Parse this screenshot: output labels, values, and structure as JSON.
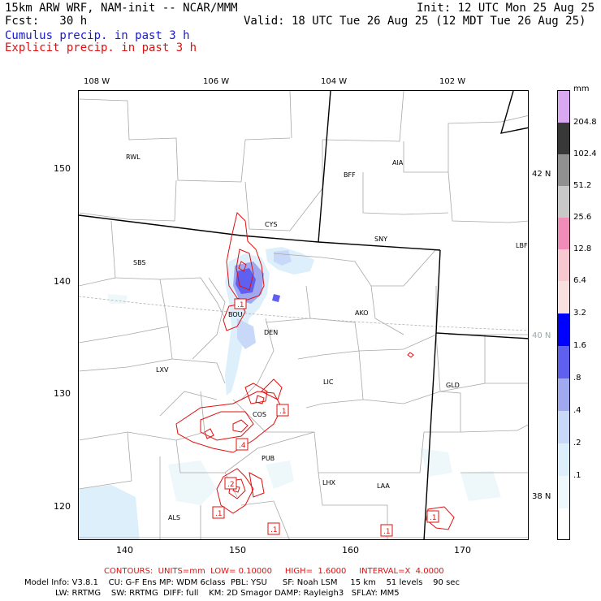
{
  "header": {
    "model_line": "15km ARW WRF, NAM-init -- NCAR/MMM",
    "fcst_line": "Fcst:   30 h",
    "init_line": "Init: 12 UTC Mon 25 Aug 25",
    "valid_line": "Valid: 18 UTC Tue 26 Aug 25 (12 MDT Tue 26 Aug 25)"
  },
  "legend": {
    "cumulus": "Cumulus precip. in past 3 h",
    "explicit": "Explicit precip. in past 3 h"
  },
  "colors": {
    "cumulus_text": "#1a1acc",
    "explicit_text": "#e01010",
    "contour": "#e01010"
  },
  "axes": {
    "lon_top": [
      "108 W",
      "106 W",
      "104 W",
      "102 W"
    ],
    "y_ticks": [
      "150",
      "140",
      "130",
      "120"
    ],
    "x_ticks": [
      "140",
      "150",
      "160",
      "170"
    ],
    "lat_right": [
      "42 N",
      "40 N",
      "38 N"
    ]
  },
  "cities": [
    "RWL",
    "BFF",
    "AIA",
    "CYS",
    "SNY",
    "LBF",
    "SBS",
    "BOU",
    "DEN",
    "AKO",
    "LXV",
    "LIC",
    "GLD",
    "COS",
    "PUB",
    "LHX",
    "LAA",
    "ALS"
  ],
  "contour_labels": [
    ".1",
    ".1",
    ".4",
    ".2",
    ".1",
    ".1",
    ".1",
    ".1"
  ],
  "colorbar": {
    "unit": "mm",
    "labels": [
      "204.8",
      "102.4",
      "51.2",
      "25.6",
      "12.8",
      "6.4",
      "3.2",
      "1.6",
      ".8",
      ".4",
      ".2",
      ".1"
    ],
    "colors": [
      "#d8a8f0",
      "#383838",
      "#909090",
      "#c8c8c8",
      "#f08cb8",
      "#f8c8d0",
      "#f8e0e0",
      "#0000ff",
      "#6060f0",
      "#a0a8f0",
      "#c8d8f8",
      "#ddeffa",
      "#eef8fb",
      "#ffffff"
    ]
  },
  "footer": {
    "contours": "CONTOURS:  UNITS=mm  LOW= 0.10000     HIGH=  1.6000     INTERVAL=X  4.0000",
    "model_info": "Model Info: V3.8.1    CU: G-F Ens MP: WDM 6class  PBL: YSU      SF: Noah LSM     15 km    51 levels    90 sec",
    "model_info2": "LW: RRTMG    SW: RRTMG  DIFF: full    KM: 2D Smagor DAMP: Rayleigh3   SFLAY: MM5"
  }
}
